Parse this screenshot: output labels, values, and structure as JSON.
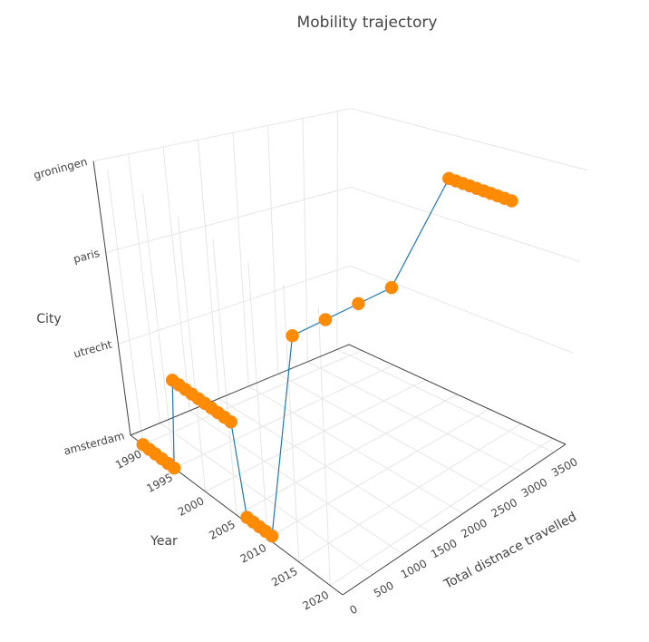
{
  "chart_data": {
    "type": "scatter3d",
    "title": "Mobility trajectory",
    "x_axis": {
      "label": "Total distnace travelled",
      "range": [
        0,
        3700
      ],
      "ticks": [
        0,
        500,
        1000,
        1500,
        2000,
        2500,
        3000,
        3500
      ]
    },
    "y_axis": {
      "label": "Year",
      "range": [
        1988,
        2022
      ],
      "ticks": [
        1990,
        1995,
        2000,
        2005,
        2010,
        2015,
        2020
      ]
    },
    "z_axis": {
      "label": "City",
      "categories": [
        "amsterdam",
        "utrecht",
        "paris",
        "groningen"
      ]
    },
    "grid": true,
    "series": [
      {
        "mode": "lines+markers",
        "marker_color": "#ff8c00",
        "line_color": "#1f77b4",
        "points": [
          {
            "x": 0,
            "year": 1990,
            "city": "amsterdam"
          },
          {
            "x": 0,
            "year": 1991,
            "city": "amsterdam"
          },
          {
            "x": 0,
            "year": 1992,
            "city": "amsterdam"
          },
          {
            "x": 0,
            "year": 1993,
            "city": "amsterdam"
          },
          {
            "x": 0,
            "year": 1994,
            "city": "amsterdam"
          },
          {
            "x": 0,
            "year": 1995,
            "city": "amsterdam"
          },
          {
            "x": 35,
            "year": 1996,
            "city": "utrecht"
          },
          {
            "x": 35,
            "year": 1997,
            "city": "utrecht"
          },
          {
            "x": 35,
            "year": 1998,
            "city": "utrecht"
          },
          {
            "x": 35,
            "year": 1999,
            "city": "utrecht"
          },
          {
            "x": 35,
            "year": 2000,
            "city": "utrecht"
          },
          {
            "x": 35,
            "year": 2001,
            "city": "utrecht"
          },
          {
            "x": 35,
            "year": 2002,
            "city": "utrecht"
          },
          {
            "x": 35,
            "year": 2003,
            "city": "utrecht"
          },
          {
            "x": 35,
            "year": 2004,
            "city": "utrecht"
          },
          {
            "x": 35,
            "year": 2005,
            "city": "utrecht"
          },
          {
            "x": 70,
            "year": 2006,
            "city": "amsterdam"
          },
          {
            "x": 70,
            "year": 2007,
            "city": "amsterdam"
          },
          {
            "x": 70,
            "year": 2008,
            "city": "amsterdam"
          },
          {
            "x": 70,
            "year": 2009,
            "city": "amsterdam"
          },
          {
            "x": 70,
            "year": 2010,
            "city": "amsterdam"
          },
          {
            "x": 570,
            "year": 2010,
            "city": "paris"
          },
          {
            "x": 1070,
            "year": 2010,
            "city": "paris"
          },
          {
            "x": 1570,
            "year": 2010,
            "city": "paris"
          },
          {
            "x": 2070,
            "year": 2010,
            "city": "paris"
          },
          {
            "x": 2800,
            "year": 2011,
            "city": "groningen"
          },
          {
            "x": 2800,
            "year": 2012,
            "city": "groningen"
          },
          {
            "x": 2800,
            "year": 2013,
            "city": "groningen"
          },
          {
            "x": 2800,
            "year": 2014,
            "city": "groningen"
          },
          {
            "x": 2800,
            "year": 2015,
            "city": "groningen"
          },
          {
            "x": 2800,
            "year": 2016,
            "city": "groningen"
          },
          {
            "x": 2800,
            "year": 2017,
            "city": "groningen"
          },
          {
            "x": 2800,
            "year": 2018,
            "city": "groningen"
          },
          {
            "x": 2800,
            "year": 2019,
            "city": "groningen"
          },
          {
            "x": 2800,
            "year": 2020,
            "city": "groningen"
          }
        ]
      }
    ]
  }
}
